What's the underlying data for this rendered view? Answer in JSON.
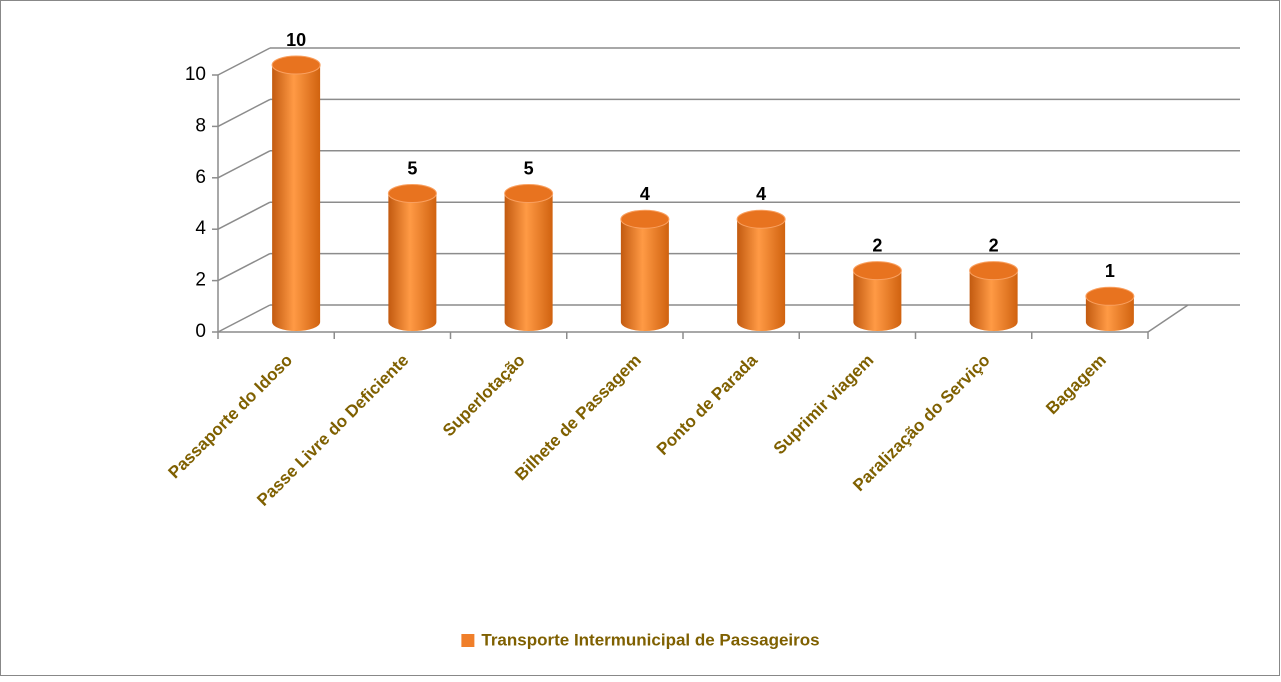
{
  "chart_data": {
    "type": "bar3d",
    "categories": [
      "Passaporte do Idoso",
      "Passe Livre do Deficiente",
      "Superlotação",
      "Bilhete de Passagem",
      "Ponto de Parada",
      "Suprimir viagem",
      "Paralização do Serviço",
      "Bagagem"
    ],
    "series": [
      {
        "name": "Transporte Intermunicipal de Passageiros",
        "color": "#f07f2a",
        "values": [
          10,
          5,
          5,
          4,
          4,
          2,
          2,
          1
        ]
      }
    ],
    "ylim": [
      0,
      10
    ],
    "yticks": [
      0,
      2,
      4,
      6,
      8,
      10
    ],
    "grid": true,
    "legend": "bottom",
    "data_labels": true
  }
}
